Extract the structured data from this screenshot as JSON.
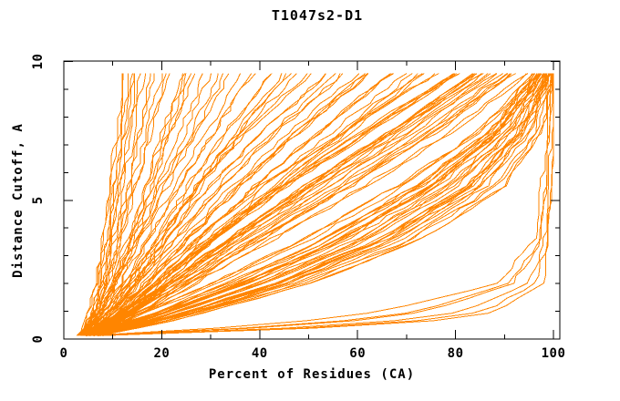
{
  "chart_data": {
    "type": "line",
    "title": "T1047s2-D1",
    "xlabel": "Percent of Residues (CA)",
    "ylabel": "Distance Cutoff, A",
    "xlim": [
      0,
      100
    ],
    "ylim": [
      0,
      10
    ],
    "x_major_ticks": [
      0,
      20,
      40,
      60,
      80,
      100
    ],
    "x_minor_ticks": [
      10,
      30,
      50,
      70,
      90
    ],
    "y_major_ticks": [
      0,
      5,
      10
    ],
    "y_minor_ticks": [
      1,
      2,
      3,
      4,
      6,
      7,
      8,
      9
    ],
    "grid": false,
    "legend": "none",
    "curve_color": "#ff8500",
    "axis_color": "#000000",
    "background_color": "#ffffff",
    "curve_y_start": 0.12,
    "curve_y_end": 9.57,
    "anchor_levels": [
      0.12,
      0.5,
      1.0,
      2.0,
      3.5,
      5.5,
      7.5,
      9.57
    ],
    "curve_families": [
      {
        "name": "steepest-left-cluster",
        "count": 9,
        "x_at_levels_min": [
          3.0,
          4.0,
          5.0,
          6.0,
          7.5,
          9.0,
          10.5,
          11.5
        ],
        "x_at_levels_max": [
          4.5,
          6.0,
          7.5,
          9.0,
          11.0,
          13.0,
          15.5,
          17.5
        ]
      },
      {
        "name": "steep-left",
        "count": 10,
        "x_at_levels_min": [
          3.0,
          4.5,
          6.0,
          8.0,
          10.0,
          13.0,
          15.5,
          18.5
        ],
        "x_at_levels_max": [
          4.5,
          6.5,
          8.5,
          11.5,
          15.0,
          19.5,
          24.0,
          29.0
        ]
      },
      {
        "name": "left-fan",
        "count": 13,
        "x_at_levels_min": [
          3.0,
          5.0,
          7.0,
          10.0,
          14.0,
          19.0,
          25.0,
          30.0
        ],
        "x_at_levels_max": [
          5.0,
          7.5,
          10.5,
          15.0,
          21.0,
          29.0,
          38.0,
          49.0
        ]
      },
      {
        "name": "middle-fan",
        "count": 20,
        "x_at_levels_min": [
          3.5,
          6.0,
          9.0,
          13.0,
          19.0,
          27.0,
          37.0,
          50.0
        ],
        "x_at_levels_max": [
          5.5,
          9.0,
          14.0,
          21.0,
          31.0,
          45.0,
          60.0,
          75.0
        ]
      },
      {
        "name": "right-fan",
        "count": 28,
        "x_at_levels_min": [
          4.0,
          7.0,
          11.0,
          17.0,
          26.0,
          40.0,
          57.0,
          76.0
        ],
        "x_at_levels_max": [
          6.0,
          11.0,
          17.0,
          27.0,
          42.0,
          62.0,
          80.0,
          95.0
        ]
      },
      {
        "name": "dense-right-bundle",
        "count": 34,
        "x_at_levels_min": [
          4.0,
          10.0,
          17.0,
          30.0,
          48.0,
          68.0,
          85.0,
          96.0
        ],
        "x_at_levels_max": [
          7.0,
          18.0,
          30.0,
          50.0,
          72.0,
          90.0,
          97.5,
          100.0
        ]
      },
      {
        "name": "low-outliers",
        "count": 6,
        "x_at_levels_min": [
          4.0,
          40.0,
          65.0,
          88.0,
          96.0,
          97.5,
          98.5,
          99.0
        ],
        "x_at_levels_max": [
          8.0,
          70.0,
          90.0,
          98.0,
          99.0,
          99.5,
          100.0,
          100.0
        ]
      }
    ],
    "seed": 42,
    "jitter": 1.2,
    "samples_per_curve": 36
  }
}
